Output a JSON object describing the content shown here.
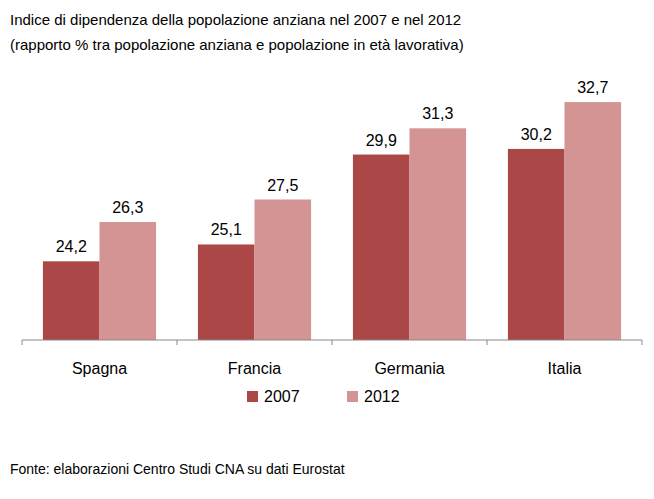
{
  "chart_data": {
    "type": "bar",
    "title": "Indice di dipendenza della popolazione anziana nel 2007 e nel 2012",
    "subtitle": "(rapporto % tra popolazione anziana e popolazione in età lavorativa)",
    "categories": [
      "Spagna",
      "Francia",
      "Germania",
      "Italia"
    ],
    "series": [
      {
        "name": "2007",
        "color": "#ab4747",
        "values": [
          24.2,
          25.1,
          29.9,
          30.2
        ],
        "value_labels": [
          "24,2",
          "25,1",
          "29,9",
          "30,2"
        ]
      },
      {
        "name": "2012",
        "color": "#d49494",
        "values": [
          26.3,
          27.5,
          31.3,
          32.7
        ],
        "value_labels": [
          "26,3",
          "27,5",
          "31,3",
          "32,7"
        ]
      }
    ],
    "ylim": [
      20,
      35
    ],
    "tick_labels": "x",
    "grid": false,
    "data_labels": true,
    "legend": "bottom",
    "source": "Fonte: elaborazioni Centro Studi CNA su dati Eurostat"
  }
}
